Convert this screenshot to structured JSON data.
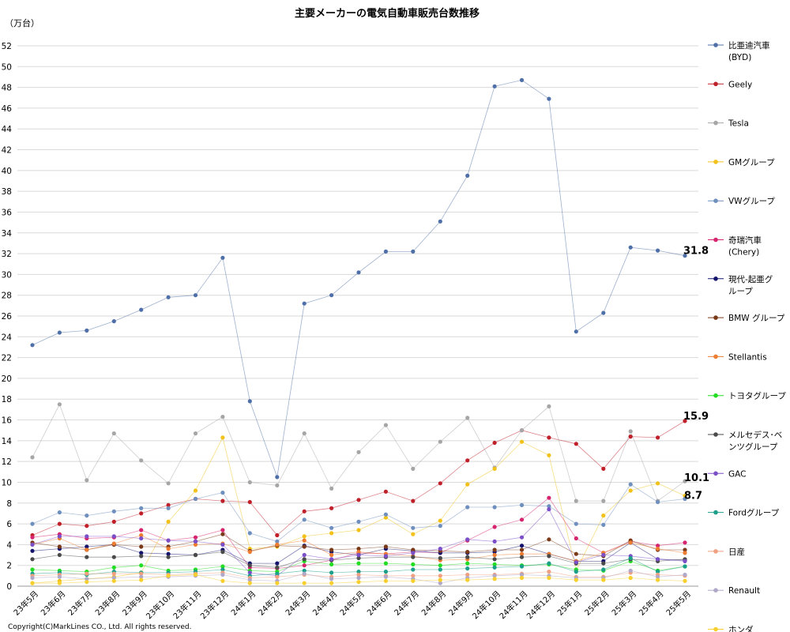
{
  "chart_data": {
    "type": "line",
    "title": "主要メーカーの電気自動車販売台数推移",
    "unit_label": "（万台）",
    "ylim": [
      0,
      52
    ],
    "yticks": [
      0,
      2,
      4,
      6,
      8,
      10,
      12,
      14,
      16,
      18,
      20,
      22,
      24,
      26,
      28,
      30,
      32,
      34,
      36,
      38,
      40,
      42,
      44,
      46,
      48,
      50,
      52
    ],
    "grid": true,
    "legend_position": "right",
    "categories": [
      "23年5月",
      "23年6月",
      "23年7月",
      "23年8月",
      "23年9月",
      "23年10月",
      "23年11月",
      "23年12月",
      "24年1月",
      "24年2月",
      "24年3月",
      "24年4月",
      "24年5月",
      "24年6月",
      "24年7月",
      "24年8月",
      "24年9月",
      "24年10月",
      "24年11月",
      "24年12月",
      "25年1月",
      "25年2月",
      "25年3月",
      "25年4月",
      "25年5月"
    ],
    "series": [
      {
        "name": "比亜迪汽車\n(BYD)",
        "color": "#4f6fa8",
        "values": [
          23.2,
          24.4,
          24.6,
          25.5,
          26.6,
          27.8,
          28.0,
          31.6,
          17.8,
          10.5,
          27.2,
          28.0,
          30.2,
          32.2,
          32.2,
          35.1,
          39.5,
          48.1,
          48.7,
          46.9,
          24.5,
          26.3,
          32.6,
          32.3,
          31.8
        ]
      },
      {
        "name": "Geely",
        "color": "#c0202a",
        "values": [
          4.9,
          6.0,
          5.8,
          6.2,
          7.0,
          7.8,
          8.4,
          8.2,
          8.1,
          4.9,
          7.2,
          7.5,
          8.3,
          9.1,
          8.2,
          9.9,
          12.1,
          13.8,
          15.0,
          14.3,
          13.7,
          11.3,
          14.4,
          14.3,
          15.9
        ]
      },
      {
        "name": "Tesla",
        "color": "#a6a6a6",
        "values": [
          12.4,
          17.5,
          10.2,
          14.7,
          12.1,
          9.9,
          14.7,
          16.3,
          10.0,
          9.7,
          14.7,
          9.4,
          12.9,
          15.5,
          11.3,
          13.9,
          16.2,
          11.4,
          15.0,
          17.3,
          8.2,
          8.2,
          14.9,
          8.2,
          10.1
        ]
      },
      {
        "name": "GMグループ",
        "color": "#f2c21b",
        "values": [
          0.3,
          0.5,
          0.7,
          0.9,
          1.3,
          6.2,
          9.2,
          14.3,
          3.6,
          3.8,
          4.8,
          5.1,
          5.4,
          6.6,
          5.0,
          6.3,
          9.8,
          11.3,
          13.9,
          12.6,
          1.5,
          6.8,
          9.2,
          9.9,
          8.7
        ]
      },
      {
        "name": "VWグループ",
        "color": "#6f8fbf",
        "values": [
          6.0,
          7.1,
          6.8,
          7.2,
          7.5,
          7.5,
          8.4,
          9.0,
          5.1,
          4.3,
          6.4,
          5.6,
          6.2,
          6.9,
          5.6,
          5.8,
          7.6,
          7.6,
          7.8,
          7.7,
          6.0,
          5.9,
          9.8,
          8.1,
          8.4
        ]
      },
      {
        "name": "奇瑞汽車\n(Chery)",
        "color": "#d6246e",
        "values": [
          4.7,
          5.0,
          4.6,
          4.7,
          5.4,
          4.4,
          4.7,
          5.4,
          1.8,
          1.7,
          2.0,
          2.5,
          3.2,
          3.1,
          3.3,
          3.2,
          4.4,
          5.7,
          6.4,
          8.5,
          4.6,
          3.2,
          4.3,
          3.9,
          4.2
        ]
      },
      {
        "name": "現代-起亜グ\nループ",
        "color": "#14146e",
        "values": [
          3.4,
          3.6,
          3.8,
          4.0,
          3.2,
          3.1,
          3.0,
          3.5,
          2.2,
          2.2,
          3.9,
          3.3,
          3.0,
          3.6,
          3.4,
          3.2,
          3.2,
          3.3,
          3.9,
          3.1,
          2.4,
          2.4,
          4.2,
          2.6,
          2.5
        ]
      },
      {
        "name": "BMW グループ",
        "color": "#7a3a1a",
        "values": [
          4.2,
          3.8,
          3.5,
          4.0,
          3.8,
          3.8,
          4.3,
          5.0,
          3.4,
          3.9,
          3.8,
          3.5,
          3.6,
          3.8,
          3.5,
          3.4,
          3.3,
          3.5,
          3.5,
          4.5,
          3.1,
          2.9,
          4.4,
          3.5,
          3.5
        ]
      },
      {
        "name": "Stellantis",
        "color": "#ed7d31",
        "values": [
          4.0,
          4.6,
          3.5,
          4.1,
          4.9,
          3.6,
          4.0,
          4.1,
          3.3,
          4.0,
          4.4,
          3.0,
          3.3,
          3.1,
          2.9,
          2.5,
          2.6,
          3.0,
          3.1,
          3.1,
          2.4,
          3.2,
          4.2,
          3.6,
          3.2
        ]
      },
      {
        "name": "トヨタグループ",
        "color": "#22dd22",
        "values": [
          1.6,
          1.5,
          1.4,
          1.8,
          2.0,
          1.5,
          1.6,
          1.9,
          1.5,
          1.4,
          2.4,
          2.1,
          2.2,
          2.2,
          2.1,
          2.0,
          2.2,
          2.1,
          2.0,
          2.1,
          1.6,
          1.5,
          2.4,
          1.5,
          1.9
        ]
      },
      {
        "name": "メルセデス･ベ\nンツグループ",
        "color": "#4a4a4a",
        "values": [
          2.6,
          3.0,
          2.8,
          2.8,
          2.9,
          2.8,
          3.0,
          3.3,
          2.0,
          1.8,
          2.6,
          2.5,
          2.7,
          2.8,
          2.8,
          2.7,
          2.8,
          2.6,
          2.8,
          2.9,
          2.2,
          2.2,
          2.6,
          2.4,
          2.6
        ]
      },
      {
        "name": "GAC",
        "color": "#7b4fc8",
        "values": [
          4.0,
          4.8,
          4.8,
          4.8,
          4.6,
          4.4,
          4.3,
          4.0,
          1.3,
          1.0,
          3.0,
          2.6,
          3.0,
          2.9,
          3.2,
          3.6,
          4.5,
          4.3,
          4.7,
          7.4,
          2.3,
          3.0,
          2.9,
          2.6,
          2.4
        ]
      },
      {
        "name": "Fordグループ",
        "color": "#1b9e8a",
        "values": [
          1.2,
          1.3,
          1.1,
          1.4,
          1.3,
          1.3,
          1.4,
          1.6,
          1.0,
          1.2,
          1.5,
          1.3,
          1.4,
          1.4,
          1.6,
          1.6,
          1.7,
          1.8,
          1.9,
          2.2,
          1.4,
          1.6,
          2.7,
          1.4,
          1.9
        ]
      },
      {
        "name": "日産",
        "color": "#f0a080",
        "values": [
          1.0,
          1.1,
          1.2,
          1.2,
          1.2,
          1.1,
          1.2,
          1.3,
          0.8,
          0.9,
          1.1,
          0.9,
          1.1,
          1.0,
          1.0,
          1.0,
          1.1,
          1.1,
          1.2,
          1.4,
          0.9,
          0.9,
          1.3,
          1.1,
          1.0
        ]
      },
      {
        "name": "Renault",
        "color": "#b0a8c8",
        "values": [
          0.8,
          0.9,
          0.7,
          0.8,
          0.9,
          0.9,
          1.0,
          1.1,
          0.6,
          0.5,
          1.2,
          0.7,
          0.8,
          0.9,
          0.7,
          0.3,
          0.8,
          1.0,
          1.1,
          1.0,
          0.8,
          0.8,
          1.5,
          0.9,
          1.1
        ]
      },
      {
        "name": "ホンダ",
        "color": "#f7d030",
        "values": [
          0.3,
          0.3,
          0.4,
          0.5,
          0.6,
          1.0,
          1.1,
          0.5,
          0.3,
          0.3,
          0.3,
          0.3,
          0.4,
          0.5,
          0.5,
          0.6,
          0.6,
          0.7,
          0.8,
          0.8,
          0.6,
          0.6,
          0.8,
          0.6,
          0.5
        ]
      }
    ],
    "callouts": [
      {
        "series_index": 0,
        "text": "31.8"
      },
      {
        "series_index": 1,
        "text": "15.9"
      },
      {
        "series_index": 2,
        "text": "10.1"
      },
      {
        "series_index": 3,
        "text": "8.7"
      }
    ]
  },
  "copyright": "Copyright(C)MarkLines CO., Ltd. All rights reserved."
}
